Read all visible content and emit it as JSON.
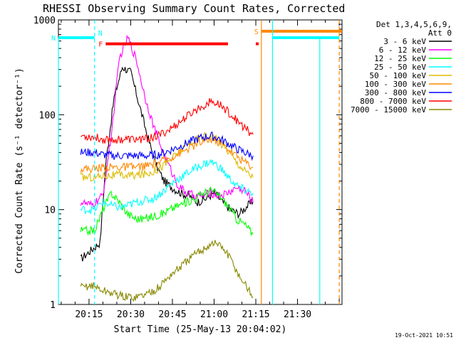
{
  "chart_data": {
    "type": "line",
    "title": "RHESSI Observing Summary Count Rates, Corrected",
    "xlabel": "Start Time (25-May-13 20:04:02)",
    "ylabel": "Corrected Count Rate (s⁻¹ detector⁻¹)",
    "yscale": "log",
    "ylim": [
      1,
      1000
    ],
    "xlim": [
      "20:04",
      "21:46"
    ],
    "x_ticks": [
      "20:15",
      "20:30",
      "20:45",
      "21:00",
      "21:15",
      "21:30"
    ],
    "y_ticks": [
      "1",
      "10",
      "100",
      "1000"
    ],
    "timestamp": "19-Oct-2021 10:51",
    "legend": {
      "placement": "right",
      "header": [
        "Det 1,3,4,5,6,9,",
        "Att 0"
      ]
    },
    "data_gap_before": "20:12",
    "data_gap_after": "21:17",
    "series": [
      {
        "name": "3 - 6 keV",
        "color": "#000000",
        "points": [
          [
            "20:12",
            3
          ],
          [
            "20:19",
            4.5
          ],
          [
            "20:21",
            30
          ],
          [
            "20:24",
            150
          ],
          [
            "20:27",
            320
          ],
          [
            "20:30",
            280
          ],
          [
            "20:33",
            130
          ],
          [
            "20:36",
            60
          ],
          [
            "20:39",
            30
          ],
          [
            "20:42",
            20
          ],
          [
            "20:45",
            17
          ],
          [
            "20:48",
            15
          ],
          [
            "20:51",
            14
          ],
          [
            "20:54",
            12
          ],
          [
            "20:57",
            13
          ],
          [
            "21:00",
            15
          ],
          [
            "21:03",
            12
          ],
          [
            "21:06",
            10
          ],
          [
            "21:09",
            9
          ],
          [
            "21:12",
            11
          ],
          [
            "21:14",
            12
          ]
        ]
      },
      {
        "name": "6 - 12 keV",
        "color": "#ff00ff",
        "points": [
          [
            "20:12",
            12
          ],
          [
            "20:16",
            11
          ],
          [
            "20:20",
            14
          ],
          [
            "20:23",
            60
          ],
          [
            "20:26",
            400
          ],
          [
            "20:29",
            650
          ],
          [
            "20:32",
            380
          ],
          [
            "20:35",
            160
          ],
          [
            "20:38",
            80
          ],
          [
            "20:41",
            45
          ],
          [
            "20:44",
            28
          ],
          [
            "20:47",
            18
          ],
          [
            "20:50",
            15
          ],
          [
            "20:53",
            14
          ],
          [
            "20:56",
            14
          ],
          [
            "20:59",
            15
          ],
          [
            "21:02",
            14
          ],
          [
            "21:05",
            15
          ],
          [
            "21:08",
            17
          ],
          [
            "21:11",
            16
          ],
          [
            "21:14",
            12
          ]
        ]
      },
      {
        "name": "12 - 25 keV",
        "color": "#00ff00",
        "points": [
          [
            "20:12",
            6
          ],
          [
            "20:17",
            6
          ],
          [
            "20:20",
            10
          ],
          [
            "20:23",
            15
          ],
          [
            "20:26",
            12
          ],
          [
            "20:29",
            9
          ],
          [
            "20:32",
            8
          ],
          [
            "20:35",
            8
          ],
          [
            "20:38",
            8.5
          ],
          [
            "20:41",
            9
          ],
          [
            "20:44",
            10
          ],
          [
            "20:47",
            11
          ],
          [
            "20:50",
            12
          ],
          [
            "20:53",
            13
          ],
          [
            "20:56",
            15
          ],
          [
            "20:59",
            16
          ],
          [
            "21:02",
            14
          ],
          [
            "21:05",
            11
          ],
          [
            "21:08",
            8
          ],
          [
            "21:11",
            7
          ],
          [
            "21:14",
            5.5
          ]
        ]
      },
      {
        "name": "25 - 50 keV",
        "color": "#00ffff",
        "points": [
          [
            "20:12",
            10
          ],
          [
            "20:17",
            10
          ],
          [
            "20:20",
            12
          ],
          [
            "20:23",
            11
          ],
          [
            "20:26",
            10.5
          ],
          [
            "20:29",
            11
          ],
          [
            "20:32",
            12
          ],
          [
            "20:35",
            12.5
          ],
          [
            "20:38",
            13
          ],
          [
            "20:41",
            15
          ],
          [
            "20:44",
            18
          ],
          [
            "20:47",
            21
          ],
          [
            "20:50",
            24
          ],
          [
            "20:53",
            27
          ],
          [
            "20:56",
            30
          ],
          [
            "20:59",
            32
          ],
          [
            "21:02",
            28
          ],
          [
            "21:05",
            22
          ],
          [
            "21:08",
            18
          ],
          [
            "21:11",
            16
          ],
          [
            "21:14",
            15
          ]
        ]
      },
      {
        "name": "50 - 100 keV",
        "color": "#ddbb00",
        "points": [
          [
            "20:12",
            22
          ],
          [
            "20:17",
            22
          ],
          [
            "20:20",
            23
          ],
          [
            "20:24",
            23
          ],
          [
            "20:28",
            23
          ],
          [
            "20:32",
            23
          ],
          [
            "20:36",
            24
          ],
          [
            "20:40",
            27
          ],
          [
            "20:44",
            33
          ],
          [
            "20:48",
            42
          ],
          [
            "20:52",
            52
          ],
          [
            "20:56",
            60
          ],
          [
            "20:59",
            60
          ],
          [
            "21:02",
            52
          ],
          [
            "21:05",
            42
          ],
          [
            "21:08",
            32
          ],
          [
            "21:11",
            26
          ],
          [
            "21:14",
            22
          ]
        ]
      },
      {
        "name": "100 - 300 keV",
        "color": "#ff8800",
        "points": [
          [
            "20:12",
            27
          ],
          [
            "20:17",
            27
          ],
          [
            "20:20",
            28
          ],
          [
            "20:24",
            28
          ],
          [
            "20:28",
            28
          ],
          [
            "20:32",
            28
          ],
          [
            "20:36",
            29
          ],
          [
            "20:40",
            31
          ],
          [
            "20:44",
            35
          ],
          [
            "20:48",
            40
          ],
          [
            "20:52",
            46
          ],
          [
            "20:56",
            52
          ],
          [
            "20:59",
            55
          ],
          [
            "21:02",
            51
          ],
          [
            "21:05",
            44
          ],
          [
            "21:08",
            37
          ],
          [
            "21:11",
            32
          ],
          [
            "21:14",
            28
          ]
        ]
      },
      {
        "name": "300 - 800 keV",
        "color": "#0000ff",
        "points": [
          [
            "20:12",
            40
          ],
          [
            "20:17",
            40
          ],
          [
            "20:20",
            38
          ],
          [
            "20:24",
            37
          ],
          [
            "20:28",
            37
          ],
          [
            "20:32",
            37
          ],
          [
            "20:36",
            37
          ],
          [
            "20:40",
            38
          ],
          [
            "20:44",
            42
          ],
          [
            "20:48",
            47
          ],
          [
            "20:52",
            53
          ],
          [
            "20:56",
            58
          ],
          [
            "20:59",
            60
          ],
          [
            "21:02",
            56
          ],
          [
            "21:05",
            50
          ],
          [
            "21:08",
            44
          ],
          [
            "21:11",
            40
          ],
          [
            "21:14",
            37
          ]
        ]
      },
      {
        "name": "800 - 7000 keV",
        "color": "#ff0000",
        "points": [
          [
            "20:12",
            60
          ],
          [
            "20:17",
            58
          ],
          [
            "20:20",
            55
          ],
          [
            "20:24",
            55
          ],
          [
            "20:28",
            55
          ],
          [
            "20:32",
            55
          ],
          [
            "20:36",
            56
          ],
          [
            "20:40",
            60
          ],
          [
            "20:44",
            70
          ],
          [
            "20:48",
            85
          ],
          [
            "20:52",
            105
          ],
          [
            "20:56",
            125
          ],
          [
            "20:59",
            138
          ],
          [
            "21:02",
            128
          ],
          [
            "21:05",
            108
          ],
          [
            "21:08",
            88
          ],
          [
            "21:11",
            72
          ],
          [
            "21:14",
            62
          ]
        ]
      },
      {
        "name": "7000 - 15000 keV",
        "color": "#888800",
        "points": [
          [
            "20:12",
            1.5
          ],
          [
            "20:16",
            1.6
          ],
          [
            "20:20",
            1.4
          ],
          [
            "20:24",
            1.3
          ],
          [
            "20:28",
            1.2
          ],
          [
            "20:32",
            1.2
          ],
          [
            "20:36",
            1.3
          ],
          [
            "20:40",
            1.5
          ],
          [
            "20:44",
            2
          ],
          [
            "20:48",
            2.5
          ],
          [
            "20:51",
            3
          ],
          [
            "20:54",
            3.5
          ],
          [
            "20:57",
            4
          ],
          [
            "21:00",
            4.5
          ],
          [
            "21:03",
            4
          ],
          [
            "21:06",
            3
          ],
          [
            "21:09",
            2
          ],
          [
            "21:12",
            1.5
          ],
          [
            "21:14",
            1.2
          ]
        ]
      }
    ],
    "attenuator_lines": [
      {
        "time": "20:04",
        "level": 650,
        "color": "#00ffff"
      },
      {
        "time": "21:38",
        "level": 650,
        "color": "#00ffff"
      }
    ],
    "state_bars": [
      {
        "label": "F",
        "color": "#ff0000",
        "level": 560,
        "segments": [
          [
            "20:21",
            "21:05"
          ],
          [
            "21:15",
            "21:16"
          ]
        ]
      },
      {
        "label": "N",
        "color": "#00ffff",
        "level": 650,
        "segments": [
          [
            "20:04",
            "20:17"
          ],
          [
            "21:21",
            "21:45"
          ]
        ]
      },
      {
        "label": "S",
        "color": "#ff8800",
        "level": 760,
        "segments": [
          [
            "21:17",
            "21:46"
          ]
        ]
      }
    ],
    "markers": [
      {
        "label": "N",
        "time": "20:17",
        "color": "#00ffff",
        "style": "dashed"
      },
      {
        "label": "",
        "time": "21:17",
        "color": "#ff8800",
        "style": "solid"
      },
      {
        "label": "",
        "time": "21:21",
        "color": "#00ffff",
        "style": "solid"
      },
      {
        "label": "",
        "time": "21:45",
        "color": "#ff8800",
        "style": "dashed"
      }
    ]
  }
}
